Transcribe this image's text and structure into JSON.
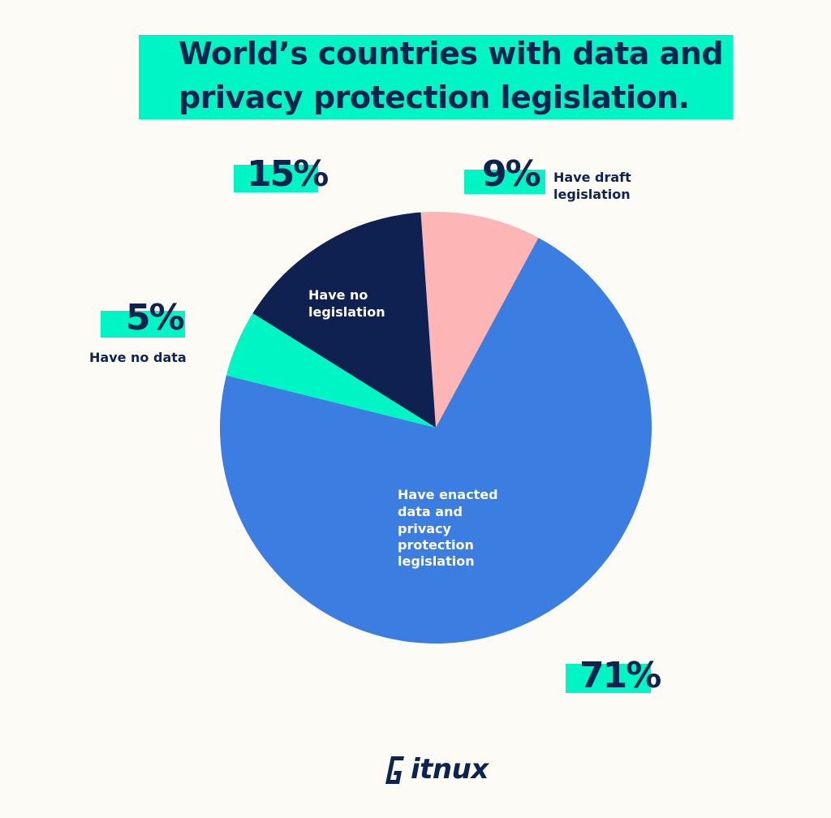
{
  "title": {
    "line1": "World’s countries with data and",
    "line2": "privacy protection legislation."
  },
  "brand": {
    "name": "itnux",
    "full_name": "Gitnux"
  },
  "colors": {
    "background": "#fdfbf6",
    "accent": "#00f5c4",
    "text": "#0d2350",
    "enacted": "#3b7de0",
    "no_data": "#00f5c4",
    "no_legislation": "#0e2150",
    "draft": "#fdb5b5"
  },
  "chart_data": {
    "type": "pie",
    "title": "World’s countries with data and privacy protection legislation.",
    "unit": "%",
    "slices": [
      {
        "label": "Have draft legislation",
        "value": 9,
        "display": "9%",
        "color": "#fdb5b5"
      },
      {
        "label": "Have enacted data and privacy protection legislation",
        "value": 71,
        "display": "71%",
        "color": "#3b7de0"
      },
      {
        "label": "Have no data",
        "value": 5,
        "display": "5%",
        "color": "#00f5c4"
      },
      {
        "label": "Have no legislation",
        "value": 15,
        "display": "15%",
        "color": "#0e2150"
      }
    ],
    "labels": {
      "draft_line1": "Have draft",
      "draft_line2": "legislation",
      "no_data": "Have no data",
      "no_legislation_line1": "Have no",
      "no_legislation_line2": "legislation",
      "enacted_line1": "Have enacted",
      "enacted_line2": "data and",
      "enacted_line3": "privacy",
      "enacted_line4": "protection",
      "enacted_line5": "legislation"
    }
  }
}
